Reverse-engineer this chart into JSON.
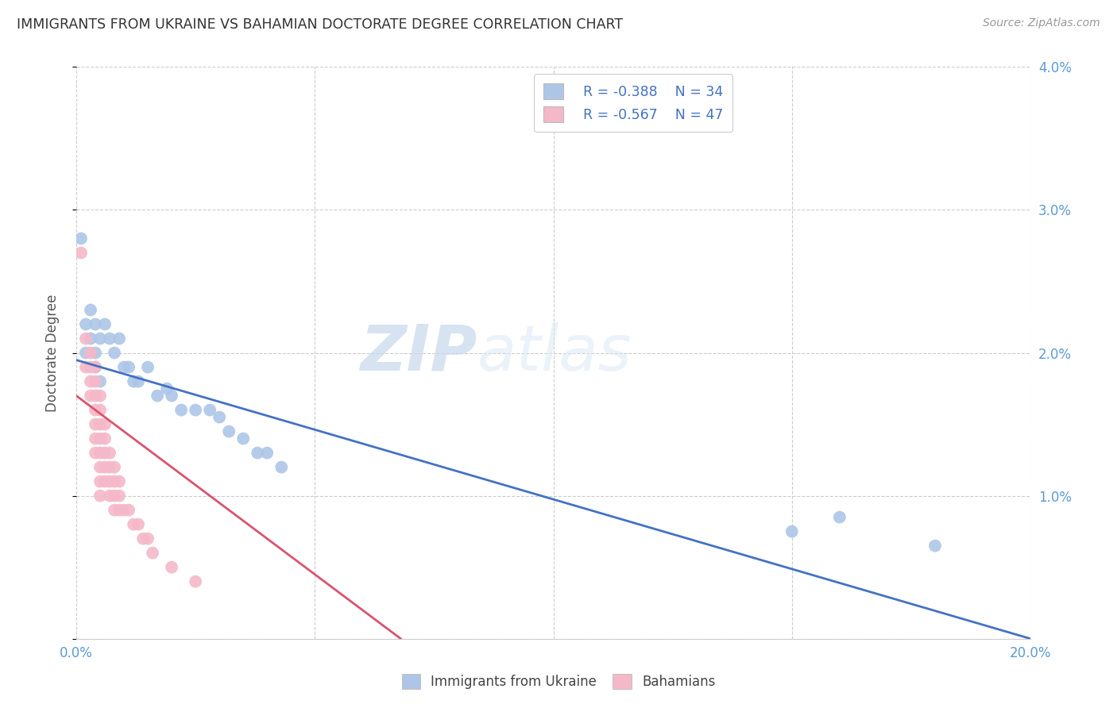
{
  "title": "IMMIGRANTS FROM UKRAINE VS BAHAMIAN DOCTORATE DEGREE CORRELATION CHART",
  "source": "Source: ZipAtlas.com",
  "ylabel": "Doctorate Degree",
  "xlim": [
    0,
    0.2
  ],
  "ylim": [
    0,
    0.04
  ],
  "xticks": [
    0.0,
    0.05,
    0.1,
    0.15,
    0.2
  ],
  "xtick_labels": [
    "0.0%",
    "",
    "",
    "",
    "20.0%"
  ],
  "yticks": [
    0.0,
    0.01,
    0.02,
    0.03,
    0.04
  ],
  "ytick_labels_left": [
    "",
    "",
    "",
    "",
    ""
  ],
  "ytick_labels_right": [
    "",
    "1.0%",
    "2.0%",
    "3.0%",
    "4.0%"
  ],
  "legend_r1": "R = -0.388",
  "legend_n1": "N = 34",
  "legend_r2": "R = -0.567",
  "legend_n2": "N = 47",
  "blue_color": "#adc6e8",
  "pink_color": "#f5b8c8",
  "line_blue": "#4472c4",
  "line_pink": "#d9546e",
  "watermark_zip": "ZIP",
  "watermark_atlas": "atlas",
  "blue_scatter_x": [
    0.001,
    0.002,
    0.002,
    0.003,
    0.003,
    0.004,
    0.004,
    0.004,
    0.005,
    0.005,
    0.006,
    0.007,
    0.008,
    0.009,
    0.01,
    0.011,
    0.012,
    0.013,
    0.015,
    0.017,
    0.019,
    0.02,
    0.022,
    0.025,
    0.028,
    0.03,
    0.032,
    0.035,
    0.038,
    0.04,
    0.043,
    0.15,
    0.16,
    0.18
  ],
  "blue_scatter_y": [
    0.028,
    0.022,
    0.02,
    0.023,
    0.021,
    0.022,
    0.02,
    0.019,
    0.021,
    0.018,
    0.022,
    0.021,
    0.02,
    0.021,
    0.019,
    0.019,
    0.018,
    0.018,
    0.019,
    0.017,
    0.0175,
    0.017,
    0.016,
    0.016,
    0.016,
    0.0155,
    0.0145,
    0.014,
    0.013,
    0.013,
    0.012,
    0.0075,
    0.0085,
    0.0065
  ],
  "pink_scatter_x": [
    0.001,
    0.002,
    0.002,
    0.003,
    0.003,
    0.003,
    0.003,
    0.004,
    0.004,
    0.004,
    0.004,
    0.004,
    0.004,
    0.004,
    0.005,
    0.005,
    0.005,
    0.005,
    0.005,
    0.005,
    0.005,
    0.005,
    0.006,
    0.006,
    0.006,
    0.006,
    0.006,
    0.007,
    0.007,
    0.007,
    0.007,
    0.008,
    0.008,
    0.008,
    0.008,
    0.009,
    0.009,
    0.009,
    0.01,
    0.011,
    0.012,
    0.013,
    0.014,
    0.015,
    0.016,
    0.02,
    0.025
  ],
  "pink_scatter_y": [
    0.027,
    0.021,
    0.019,
    0.02,
    0.019,
    0.018,
    0.017,
    0.019,
    0.018,
    0.017,
    0.016,
    0.015,
    0.014,
    0.013,
    0.017,
    0.016,
    0.015,
    0.014,
    0.013,
    0.012,
    0.011,
    0.01,
    0.015,
    0.014,
    0.013,
    0.012,
    0.011,
    0.013,
    0.012,
    0.011,
    0.01,
    0.012,
    0.011,
    0.01,
    0.009,
    0.011,
    0.01,
    0.009,
    0.009,
    0.009,
    0.008,
    0.008,
    0.007,
    0.007,
    0.006,
    0.005,
    0.004
  ],
  "blue_line_x": [
    0.0,
    0.2
  ],
  "blue_line_y": [
    0.0195,
    0.0
  ],
  "pink_line_x": [
    0.0,
    0.068
  ],
  "pink_line_y": [
    0.017,
    0.0
  ]
}
